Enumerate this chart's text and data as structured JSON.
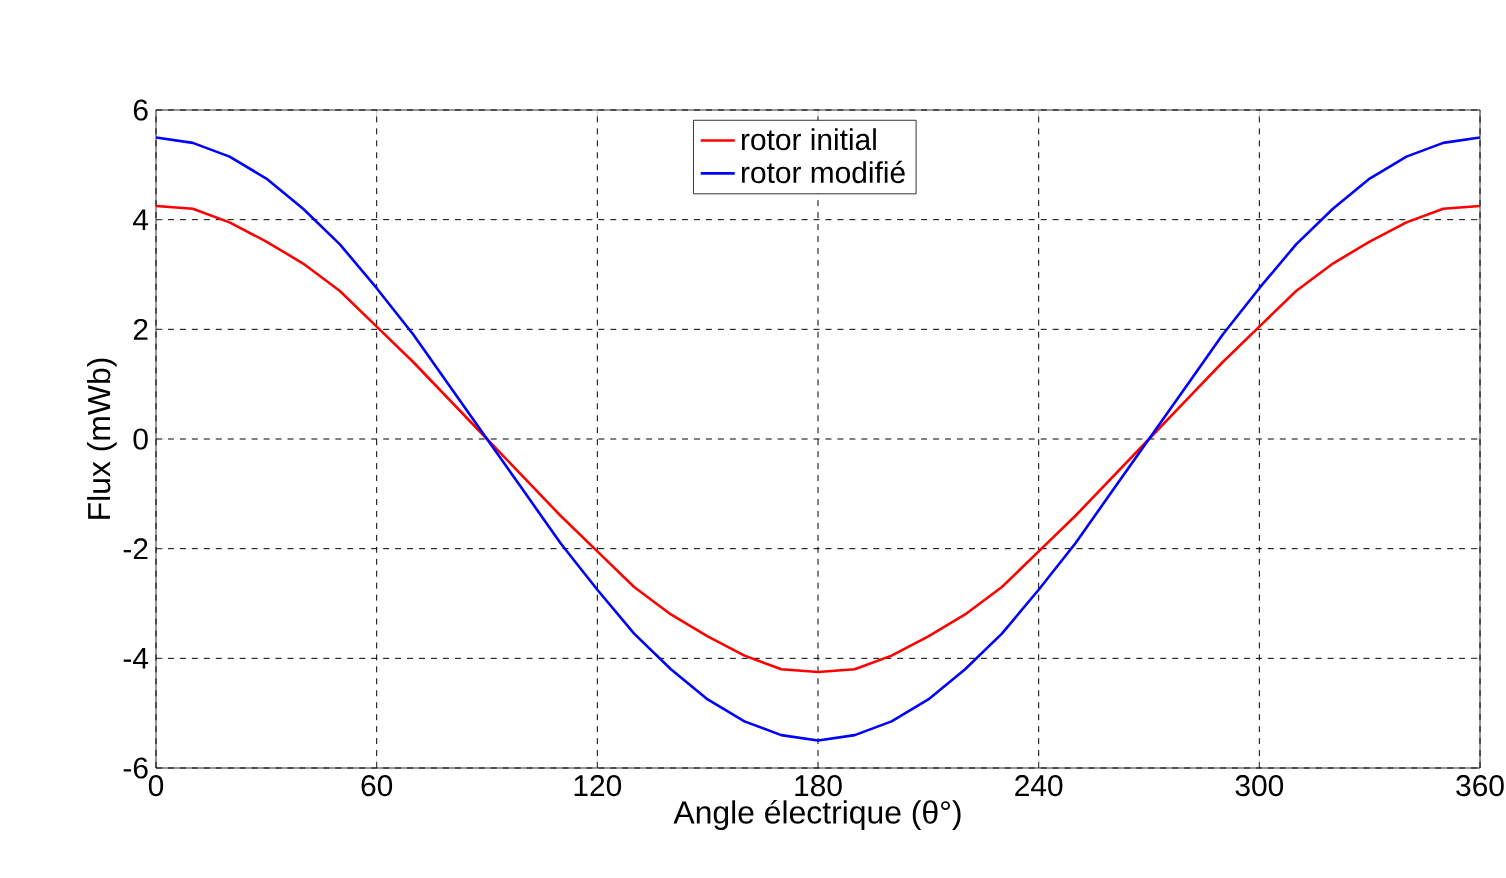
{
  "chart_data": {
    "type": "line",
    "xlabel": "Angle électrique (θ°)",
    "ylabel": "Flux (mWb)",
    "x": [
      0,
      10,
      20,
      30,
      40,
      50,
      60,
      70,
      80,
      90,
      100,
      110,
      120,
      130,
      140,
      150,
      160,
      170,
      180,
      190,
      200,
      210,
      220,
      230,
      240,
      250,
      260,
      270,
      280,
      290,
      300,
      310,
      320,
      330,
      340,
      350,
      360
    ],
    "series": [
      {
        "name": "rotor initial",
        "color": "#ff0000",
        "values": [
          4.25,
          4.2,
          3.95,
          3.6,
          3.2,
          2.7,
          2.05,
          1.4,
          0.7,
          0,
          -0.7,
          -1.4,
          -2.05,
          -2.7,
          -3.2,
          -3.6,
          -3.95,
          -4.2,
          -4.25,
          -4.2,
          -3.95,
          -3.6,
          -3.2,
          -2.7,
          -2.05,
          -1.4,
          -0.7,
          0,
          0.7,
          1.4,
          2.05,
          2.7,
          3.2,
          3.6,
          3.95,
          4.2,
          4.25
        ]
      },
      {
        "name": "rotor modifié",
        "color": "#0000ff",
        "values": [
          5.5,
          5.4,
          5.15,
          4.75,
          4.2,
          3.55,
          2.75,
          1.9,
          0.95,
          0,
          -0.95,
          -1.9,
          -2.75,
          -3.55,
          -4.2,
          -4.75,
          -5.15,
          -5.4,
          -5.5,
          -5.4,
          -5.15,
          -4.75,
          -4.2,
          -3.55,
          -2.75,
          -1.9,
          -0.95,
          0,
          0.95,
          1.9,
          2.75,
          3.55,
          4.2,
          4.75,
          5.15,
          5.4,
          5.5
        ]
      }
    ],
    "xlim": [
      0,
      360
    ],
    "xticks": [
      0,
      60,
      120,
      180,
      240,
      300,
      360
    ],
    "ylim": [
      -6,
      6
    ],
    "yticks": [
      -6,
      -4,
      -2,
      0,
      2,
      4,
      6
    ],
    "grid": true,
    "legend": "top",
    "marker": "none",
    "line_style": "solid"
  }
}
